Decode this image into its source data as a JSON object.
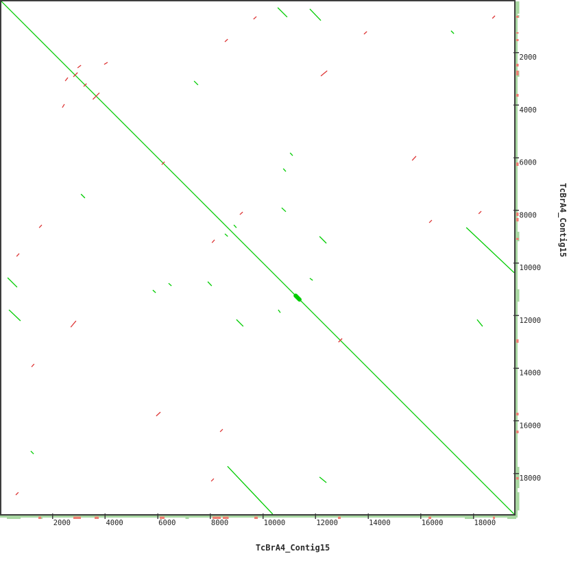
{
  "figure": {
    "background": "#ffffff",
    "plot_border_color": "#3d3d3d",
    "text_color": "#222222"
  },
  "chart_data": {
    "type": "scatter",
    "subtype": "dna-dotplot-self-alignment",
    "title": "",
    "xlabel": "TcBrA4_Contig15",
    "ylabel": "TcBrA4_Contig15",
    "xlim": [
      0,
      19550
    ],
    "ylim": [
      0,
      19550
    ],
    "y_axis_direction": "down",
    "grid": false,
    "legend": "none",
    "x_ticks": [
      2000,
      4000,
      6000,
      8000,
      10000,
      12000,
      14000,
      16000,
      18000
    ],
    "y_ticks": [
      2000,
      4000,
      6000,
      8000,
      10000,
      12000,
      14000,
      16000,
      18000
    ],
    "colors": {
      "forward_match": "#00cc00",
      "reverse_match": "#dd3434",
      "edge_band": "#a9d7a2",
      "edge_red": "#ee7e72",
      "border": "#3d3d3d",
      "text": "#222222"
    },
    "segments": [
      {
        "x1": 0,
        "y1": 0,
        "x2": 19550,
        "y2": 19550,
        "color": "forward",
        "w": 1.3,
        "name": "main-diagonal"
      },
      {
        "x1": 11240,
        "y1": 11240,
        "x2": 11390,
        "y2": 11390,
        "color": "forward",
        "w": 6,
        "name": "diagonal-blob"
      },
      {
        "x1": 10560,
        "y1": 290,
        "x2": 10920,
        "y2": 650,
        "color": "forward",
        "w": 1.3
      },
      {
        "x1": 290,
        "y1": 10560,
        "x2": 650,
        "y2": 10920,
        "color": "forward",
        "w": 1.3
      },
      {
        "x1": 11780,
        "y1": 340,
        "x2": 12200,
        "y2": 780,
        "color": "forward",
        "w": 1.3
      },
      {
        "x1": 340,
        "y1": 11780,
        "x2": 780,
        "y2": 12200,
        "color": "forward",
        "w": 1.3
      },
      {
        "x1": 3080,
        "y1": 7380,
        "x2": 3230,
        "y2": 7530,
        "color": "forward",
        "w": 1.3
      },
      {
        "x1": 7380,
        "y1": 3080,
        "x2": 7530,
        "y2": 3230,
        "color": "forward",
        "w": 1.3
      },
      {
        "x1": 10710,
        "y1": 7900,
        "x2": 10870,
        "y2": 8050,
        "color": "forward",
        "w": 1.3
      },
      {
        "x1": 7900,
        "y1": 10710,
        "x2": 8050,
        "y2": 10870,
        "color": "forward",
        "w": 1.3
      },
      {
        "x1": 8550,
        "y1": 8890,
        "x2": 8660,
        "y2": 8990,
        "color": "forward",
        "w": 1.3
      },
      {
        "x1": 8890,
        "y1": 8550,
        "x2": 8990,
        "y2": 8660,
        "color": "forward",
        "w": 1.3
      },
      {
        "x1": 17150,
        "y1": 1170,
        "x2": 17260,
        "y2": 1280,
        "color": "forward",
        "w": 1.3
      },
      {
        "x1": 1170,
        "y1": 17150,
        "x2": 1280,
        "y2": 17260,
        "color": "forward",
        "w": 1.3
      },
      {
        "x1": 11030,
        "y1": 5810,
        "x2": 11130,
        "y2": 5920,
        "color": "forward",
        "w": 1.3
      },
      {
        "x1": 5810,
        "y1": 11030,
        "x2": 5920,
        "y2": 11130,
        "color": "forward",
        "w": 1.3
      },
      {
        "x1": 10770,
        "y1": 6410,
        "x2": 10870,
        "y2": 6520,
        "color": "forward",
        "w": 1.3
      },
      {
        "x1": 6410,
        "y1": 10770,
        "x2": 6520,
        "y2": 10870,
        "color": "forward",
        "w": 1.3
      },
      {
        "x1": 17730,
        "y1": 8650,
        "x2": 19550,
        "y2": 10370,
        "color": "forward",
        "w": 1.3
      },
      {
        "x1": 8650,
        "y1": 17730,
        "x2": 10370,
        "y2": 19550,
        "color": "forward",
        "w": 1.3
      },
      {
        "x1": 12150,
        "y1": 8990,
        "x2": 12410,
        "y2": 9250,
        "color": "forward",
        "w": 1.3
      },
      {
        "x1": 8990,
        "y1": 12150,
        "x2": 9250,
        "y2": 12410,
        "color": "forward",
        "w": 1.3
      },
      {
        "x1": 11780,
        "y1": 10580,
        "x2": 11890,
        "y2": 10660,
        "color": "forward",
        "w": 1.3
      },
      {
        "x1": 10580,
        "y1": 11780,
        "x2": 10660,
        "y2": 11890,
        "color": "forward",
        "w": 1.3
      },
      {
        "x1": 18140,
        "y1": 12150,
        "x2": 18350,
        "y2": 12410,
        "color": "forward",
        "w": 1.3
      },
      {
        "x1": 12150,
        "y1": 18140,
        "x2": 12410,
        "y2": 18350,
        "color": "forward",
        "w": 1.3
      },
      {
        "x1": 2790,
        "y1": 2920,
        "x2": 2950,
        "y2": 2760,
        "color": "reverse",
        "w": 1.3
      },
      {
        "x1": 3180,
        "y1": 3290,
        "x2": 3290,
        "y2": 3180,
        "color": "reverse",
        "w": 1.3
      },
      {
        "x1": 3530,
        "y1": 3780,
        "x2": 3780,
        "y2": 3530,
        "color": "reverse",
        "w": 1.3
      },
      {
        "x1": 6150,
        "y1": 6260,
        "x2": 6260,
        "y2": 6150,
        "color": "reverse",
        "w": 1.3
      },
      {
        "x1": 12870,
        "y1": 13010,
        "x2": 13010,
        "y2": 12870,
        "color": "reverse",
        "w": 1.3
      },
      {
        "x1": 9640,
        "y1": 730,
        "x2": 9750,
        "y2": 630,
        "color": "reverse",
        "w": 1.3
      },
      {
        "x1": 630,
        "y1": 9750,
        "x2": 730,
        "y2": 9640,
        "color": "reverse",
        "w": 1.3
      },
      {
        "x1": 8550,
        "y1": 1590,
        "x2": 8660,
        "y2": 1490,
        "color": "reverse",
        "w": 1.3
      },
      {
        "x1": 1490,
        "y1": 8660,
        "x2": 1590,
        "y2": 8550,
        "color": "reverse",
        "w": 1.3
      },
      {
        "x1": 2950,
        "y1": 2580,
        "x2": 3080,
        "y2": 2480,
        "color": "reverse",
        "w": 1.3
      },
      {
        "x1": 2480,
        "y1": 3080,
        "x2": 2580,
        "y2": 2950,
        "color": "reverse",
        "w": 1.3
      },
      {
        "x1": 3960,
        "y1": 2450,
        "x2": 4090,
        "y2": 2370,
        "color": "reverse",
        "w": 1.3
      },
      {
        "x1": 2370,
        "y1": 4090,
        "x2": 2450,
        "y2": 3960,
        "color": "reverse",
        "w": 1.3
      },
      {
        "x1": 18720,
        "y1": 700,
        "x2": 18820,
        "y2": 600,
        "color": "reverse",
        "w": 1.3
      },
      {
        "x1": 600,
        "y1": 18820,
        "x2": 700,
        "y2": 18720,
        "color": "reverse",
        "w": 1.3
      },
      {
        "x1": 13840,
        "y1": 1300,
        "x2": 13950,
        "y2": 1200,
        "color": "reverse",
        "w": 1.3
      },
      {
        "x1": 1200,
        "y1": 13950,
        "x2": 1300,
        "y2": 13840,
        "color": "reverse",
        "w": 1.3
      },
      {
        "x1": 12200,
        "y1": 2890,
        "x2": 12440,
        "y2": 2690,
        "color": "reverse",
        "w": 1.3
      },
      {
        "x1": 2690,
        "y1": 12440,
        "x2": 2890,
        "y2": 12200,
        "color": "reverse",
        "w": 1.3
      },
      {
        "x1": 8060,
        "y1": 9230,
        "x2": 8160,
        "y2": 9120,
        "color": "reverse",
        "w": 1.3
      },
      {
        "x1": 9120,
        "y1": 8160,
        "x2": 9230,
        "y2": 8060,
        "color": "reverse",
        "w": 1.3
      },
      {
        "x1": 16320,
        "y1": 8470,
        "x2": 16420,
        "y2": 8370,
        "color": "reverse",
        "w": 1.3
      },
      {
        "x1": 8370,
        "y1": 16420,
        "x2": 8470,
        "y2": 16320,
        "color": "reverse",
        "w": 1.3
      },
      {
        "x1": 8030,
        "y1": 18300,
        "x2": 8130,
        "y2": 18200,
        "color": "reverse",
        "w": 1.3
      },
      {
        "x1": 18200,
        "y1": 8130,
        "x2": 18300,
        "y2": 8030,
        "color": "reverse",
        "w": 1.3
      },
      {
        "x1": 5940,
        "y1": 15820,
        "x2": 6100,
        "y2": 15670,
        "color": "reverse",
        "w": 1.3
      },
      {
        "x1": 15670,
        "y1": 6100,
        "x2": 15820,
        "y2": 5940,
        "color": "reverse",
        "w": 1.3
      }
    ],
    "right_edge_profile": {
      "band_range": [
        50,
        19630
      ],
      "green_blobs": [
        [
          50,
          520
        ],
        [
          570,
          680
        ],
        [
          2680,
          2920
        ],
        [
          8810,
          9170
        ],
        [
          11000,
          11470
        ],
        [
          17750,
          18560
        ],
        [
          18710,
          19410
        ]
      ],
      "red_marks": [
        [
          600,
          680
        ],
        [
          1220,
          1280
        ],
        [
          1490,
          1560
        ],
        [
          2420,
          2530
        ],
        [
          2680,
          2870
        ],
        [
          3570,
          3680
        ],
        [
          6180,
          6310
        ],
        [
          8080,
          8210
        ],
        [
          8290,
          8420
        ],
        [
          9040,
          9120
        ],
        [
          12900,
          13030
        ],
        [
          15690,
          15790
        ],
        [
          16370,
          16470
        ],
        [
          18140,
          18240
        ]
      ]
    },
    "bottom_edge_profile": {
      "band_range": [
        0,
        19680
      ],
      "green_blobs": [
        [
          260,
          780
        ],
        [
          1490,
          1620
        ],
        [
          7050,
          7180
        ],
        [
          17670,
          18030
        ],
        [
          19290,
          19630
        ]
      ],
      "red_marks": [
        [
          1460,
          1560
        ],
        [
          2790,
          3080
        ],
        [
          3600,
          3760
        ],
        [
          6070,
          6260
        ],
        [
          8080,
          8390
        ],
        [
          8470,
          8690
        ],
        [
          9670,
          9800
        ],
        [
          12850,
          12960
        ],
        [
          16290,
          16400
        ],
        [
          18740,
          18820
        ]
      ]
    }
  }
}
